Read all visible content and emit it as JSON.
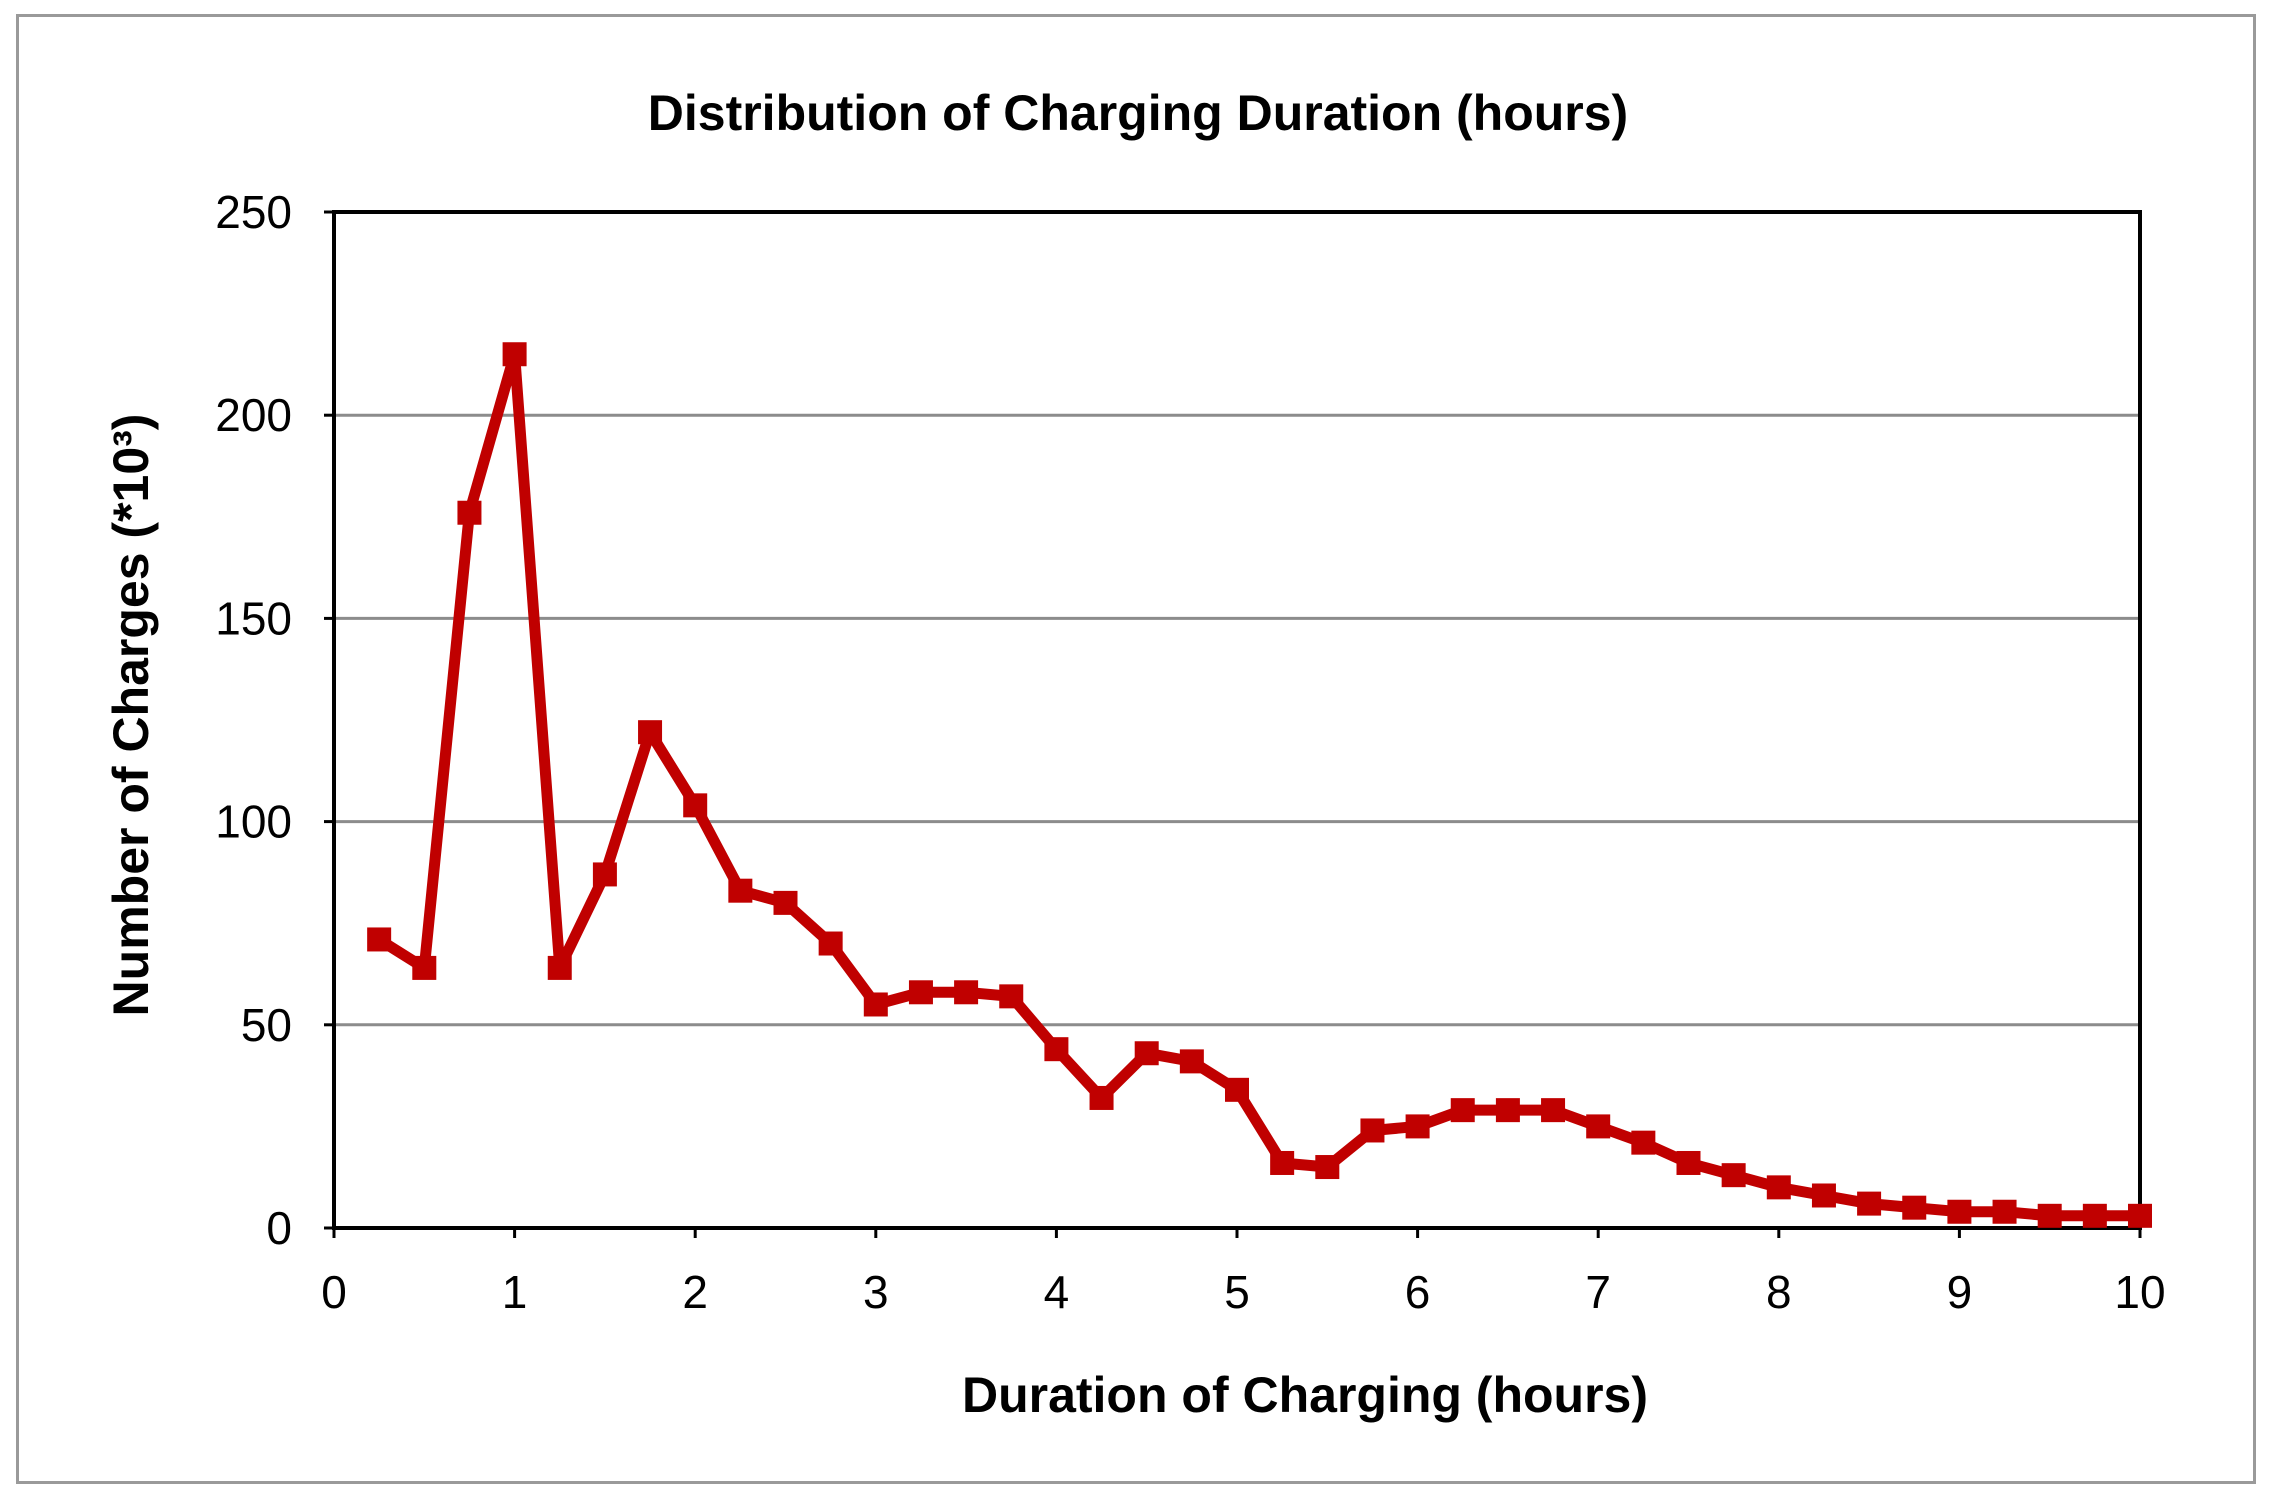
{
  "chart_data": {
    "type": "line",
    "title": "Distribution of Charging Duration (hours)",
    "xlabel": "Duration of Charging (hours)",
    "ylabel": "Number of Charges (*10³)",
    "xlim": [
      0,
      10
    ],
    "ylim": [
      0,
      250
    ],
    "x_ticks": [
      "0",
      "1",
      "2",
      "3",
      "4",
      "5",
      "6",
      "7",
      "8",
      "9",
      "10"
    ],
    "y_ticks": [
      "0",
      "50",
      "100",
      "150",
      "200",
      "250"
    ],
    "grid": "horizontal",
    "legend": "none",
    "series": [
      {
        "color": "#c00000",
        "marker": "square",
        "x": [
          0.25,
          0.5,
          0.75,
          1.0,
          1.25,
          1.5,
          1.75,
          2.0,
          2.25,
          2.5,
          2.75,
          3.0,
          3.25,
          3.5,
          3.75,
          4.0,
          4.25,
          4.5,
          4.75,
          5.0,
          5.25,
          5.5,
          5.75,
          6.0,
          6.25,
          6.5,
          6.75,
          7.0,
          7.25,
          7.5,
          7.75,
          8.0,
          8.25,
          8.5,
          8.75,
          9.0,
          9.25,
          9.5,
          9.75,
          10.0
        ],
        "values": [
          71,
          64,
          176,
          215,
          64,
          87,
          122,
          104,
          83,
          80,
          70,
          55,
          58,
          58,
          57,
          44,
          32,
          43,
          41,
          34,
          16,
          15,
          24,
          25,
          29,
          29,
          29,
          25,
          21,
          16,
          13,
          10,
          8,
          6,
          5,
          4,
          4,
          3,
          3,
          3
        ]
      }
    ]
  }
}
